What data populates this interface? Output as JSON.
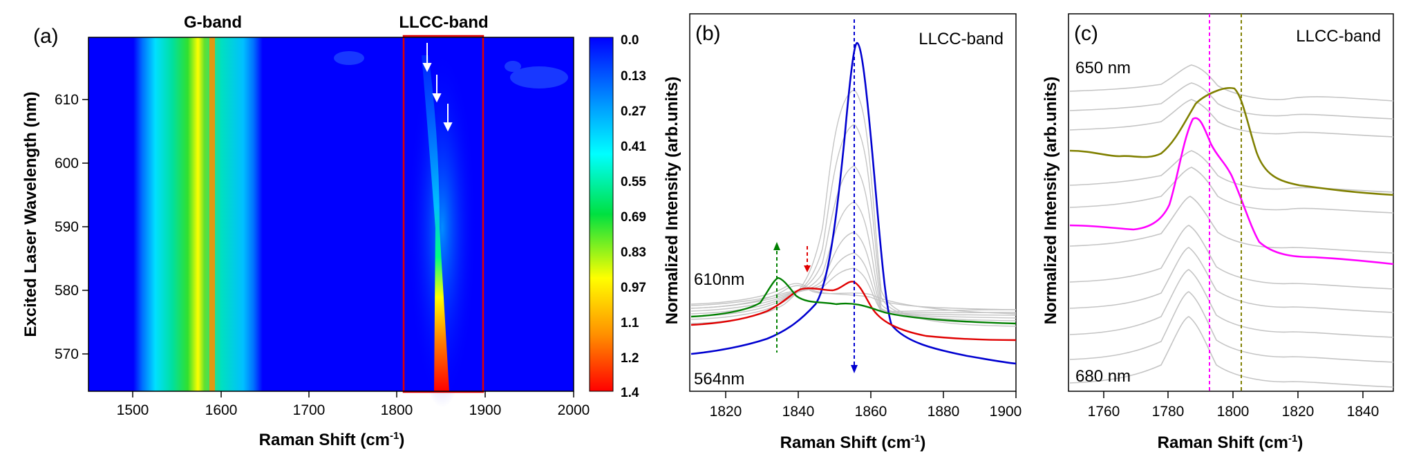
{
  "panel_a": {
    "label": "(a)",
    "band_labels": [
      "G-band",
      "LLCC-band"
    ],
    "ylabel": "Excited Laser Wavelength (nm)",
    "xlabel": "Raman Shift (cm",
    "xlabel_sup": "-1",
    "xlabel_end": ")",
    "xticks": [
      "1500",
      "1600",
      "1700",
      "1800",
      "1900",
      "2000"
    ],
    "yticks": [
      "570",
      "580",
      "590",
      "600",
      "610"
    ],
    "colorbar_ticks": [
      "0.0",
      "0.13",
      "0.27",
      "0.41",
      "0.55",
      "0.69",
      "0.83",
      "0.97",
      "1.1",
      "1.2",
      "1.4"
    ],
    "colors": {
      "scale": [
        "#0000ff",
        "#00b0ff",
        "#00ffff",
        "#00e040",
        "#ffff00",
        "#ff8000",
        "#ff0000"
      ],
      "box": "#e00000",
      "arrow": "#ffffff"
    }
  },
  "panel_b": {
    "label": "(b)",
    "title": "LLCC-band",
    "ylabel": "Normalized Intensity (arb.units)",
    "xlabel": "Raman Shift (cm",
    "xlabel_sup": "-1",
    "xlabel_end": ")",
    "xticks": [
      "1820",
      "1840",
      "1860",
      "1880",
      "1900"
    ],
    "annotations": [
      "610nm",
      "564nm"
    ],
    "colors": {
      "top": "#008000",
      "mid": "#e00000",
      "bottom": "#0000d0",
      "gray": "#c0c0c0"
    }
  },
  "panel_c": {
    "label": "(c)",
    "title": "LLCC-band",
    "ylabel": "Normalized Intensity (arb.units)",
    "xlabel": "Raman Shift (cm",
    "xlabel_sup": "-1",
    "xlabel_end": ")",
    "xticks": [
      "1760",
      "1780",
      "1800",
      "1820",
      "1840"
    ],
    "annotations": [
      "650 nm",
      "680 nm"
    ],
    "colors": {
      "olive": "#808000",
      "magenta": "#ff00ff",
      "gray": "#c0c0c0"
    }
  },
  "chart_data": [
    {
      "type": "heatmap",
      "title": "",
      "xlabel": "Raman Shift (cm-1)",
      "ylabel": "Excited Laser Wavelength (nm)",
      "xlim": [
        1450,
        2000
      ],
      "ylim": [
        564,
        620
      ],
      "zlim": [
        0.0,
        1.4
      ],
      "features": [
        {
          "name": "G-band",
          "center": 1588,
          "fwhm": 90,
          "intensity": 0.95
        },
        {
          "name": "LLCC-band",
          "center": 1854,
          "intensity_at_565": 1.4,
          "intensity_at_610": 0.15
        }
      ]
    },
    {
      "type": "line",
      "title": "LLCC-band",
      "xlabel": "Raman Shift (cm-1)",
      "ylabel": "Normalized Intensity (arb.units)",
      "xlim": [
        1810,
        1900
      ],
      "series": [
        {
          "name": "610nm",
          "x": [
            1810,
            1820,
            1828,
            1833,
            1838,
            1845,
            1852,
            1858,
            1865,
            1880,
            1900
          ],
          "values": [
            0.28,
            0.29,
            0.33,
            0.38,
            0.33,
            0.3,
            0.31,
            0.29,
            0.28,
            0.27,
            0.26
          ]
        },
        {
          "name": "",
          "x": [
            1810,
            1820,
            1830,
            1836,
            1842,
            1848,
            1853,
            1858,
            1864,
            1880,
            1900
          ],
          "values": [
            0.24,
            0.25,
            0.28,
            0.32,
            0.34,
            0.35,
            0.37,
            0.32,
            0.26,
            0.22,
            0.21
          ]
        },
        {
          "name": "564nm",
          "x": [
            1810,
            1820,
            1830,
            1840,
            1846,
            1850,
            1854,
            1858,
            1862,
            1868,
            1880,
            1900
          ],
          "values": [
            0.17,
            0.2,
            0.24,
            0.3,
            0.5,
            0.78,
            0.97,
            0.8,
            0.45,
            0.22,
            0.15,
            0.12
          ]
        }
      ],
      "markers": [
        1832,
        1841,
        1854
      ]
    },
    {
      "type": "line",
      "title": "LLCC-band",
      "xlabel": "Raman Shift (cm-1)",
      "ylabel": "Normalized Intensity (arb.units)",
      "xlim": [
        1750,
        1850
      ],
      "series": [
        {
          "name": "",
          "x": [
            1750,
            1770,
            1785,
            1795,
            1802,
            1808,
            1815,
            1830,
            1850
          ],
          "values": [
            0.64,
            0.64,
            0.66,
            0.72,
            0.76,
            0.7,
            0.62,
            0.59,
            0.58
          ]
        },
        {
          "name": "",
          "x": [
            1750,
            1770,
            1785,
            1790,
            1794,
            1800,
            1808,
            1820,
            1835,
            1850
          ],
          "values": [
            0.46,
            0.46,
            0.5,
            0.58,
            0.67,
            0.6,
            0.5,
            0.44,
            0.42,
            0.4
          ]
        }
      ],
      "markers": [
        1793,
        1802
      ]
    }
  ]
}
